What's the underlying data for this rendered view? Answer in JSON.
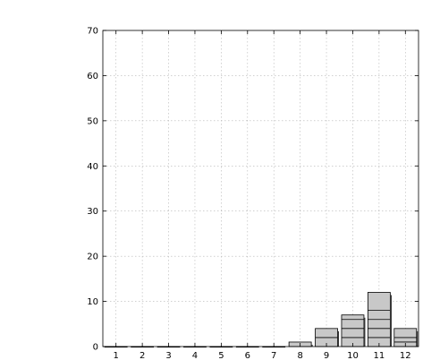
{
  "chart_data": {
    "type": "bar",
    "categories": [
      "1",
      "2",
      "3",
      "4",
      "5",
      "6",
      "7",
      "8",
      "9",
      "10",
      "11",
      "12"
    ],
    "values": [
      0,
      0,
      0,
      0,
      0,
      0,
      0,
      1,
      4,
      7,
      12,
      4
    ],
    "stack_boundaries": [
      [],
      [],
      [],
      [],
      [],
      [],
      [],
      [],
      [
        2
      ],
      [
        2,
        4,
        6
      ],
      [
        2,
        4,
        6,
        8
      ],
      [
        1,
        2
      ]
    ],
    "ylim": [
      0,
      70
    ],
    "yticks": [
      "0",
      "10",
      "20",
      "30",
      "40",
      "50",
      "60",
      "70"
    ],
    "grid": true,
    "bar_color": "#c8c8c8",
    "title": "",
    "xlabel": "",
    "ylabel": ""
  }
}
